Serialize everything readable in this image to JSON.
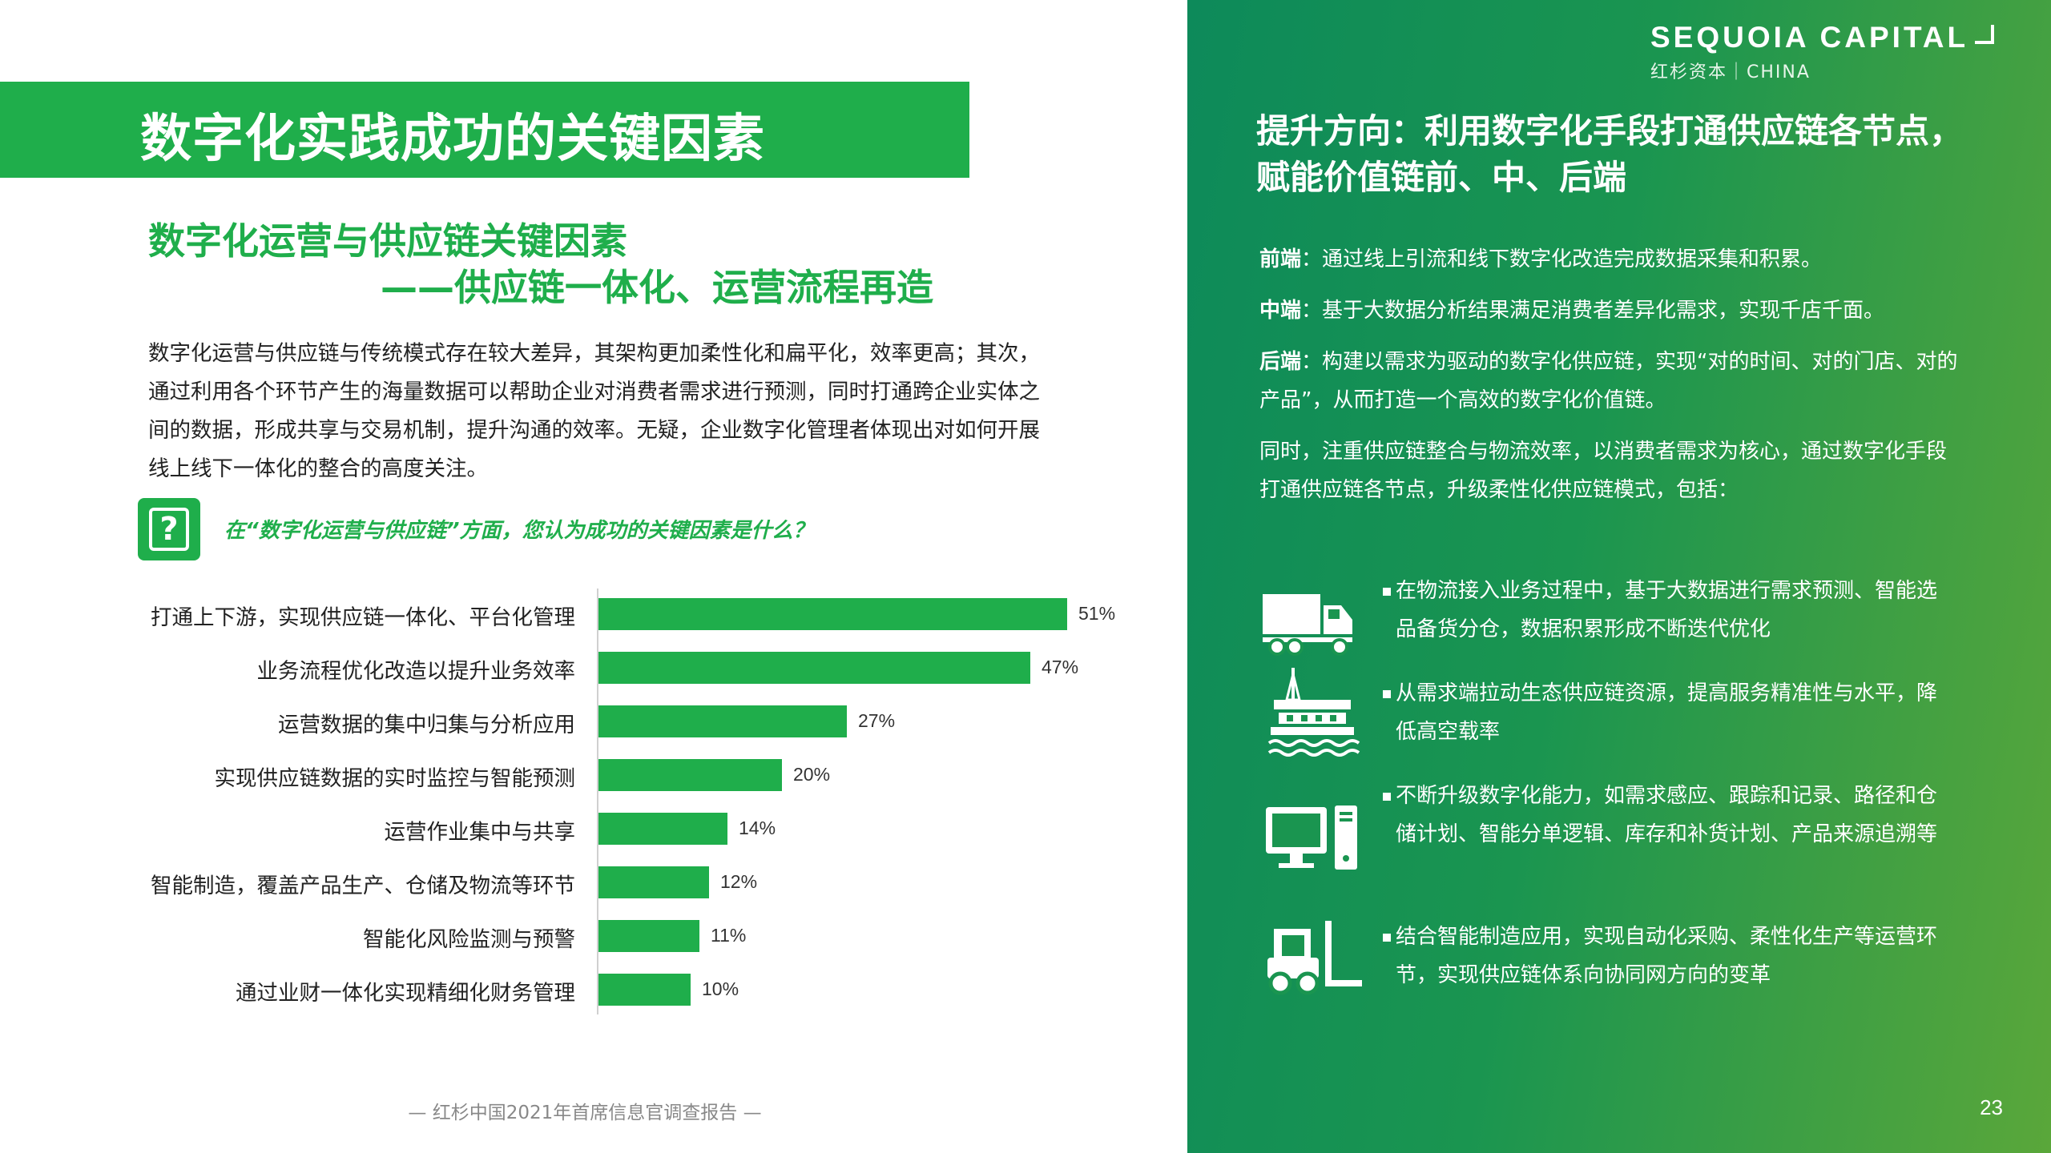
{
  "left": {
    "title": "数字化实践成功的关键因素",
    "subtitle_line1": "数字化运营与供应链关键因素",
    "subtitle_line2": "——供应链一体化、运营流程再造",
    "intro": "数字化运营与供应链与传统模式存在较大差异，其架构更加柔性化和扁平化，效率更高；其次，通过利用各个环节产生的海量数据可以帮助企业对消费者需求进行预测，同时打通跨企业实体之间的数据，形成共享与交易机制，提升沟通的效率。无疑，企业数字化管理者体现出对如何开展线上线下一体化的整合的高度关注。",
    "question_icon": "question-mark-icon",
    "question": "在“数字化运营与供应链”方面，您认为成功的关键因素是什么？"
  },
  "chart_data": {
    "type": "bar",
    "orientation": "horizontal",
    "categories": [
      "打通上下游，实现供应链一体化、平台化管理",
      "业务流程优化改造以提升业务效率",
      "运营数据的集中归集与分析应用",
      "实现供应链数据的实时监控与智能预测",
      "运营作业集中与共享",
      "智能制造，覆盖产品生产、仓储及物流等环节",
      "智能化风险监测与预警",
      "通过业财一体化实现精细化财务管理"
    ],
    "values": [
      51,
      47,
      27,
      20,
      14,
      12,
      11,
      10
    ],
    "value_labels": [
      "51%",
      "47%",
      "27%",
      "20%",
      "14%",
      "12%",
      "11%",
      "10%"
    ],
    "unit": "%",
    "xlim": [
      0,
      51
    ],
    "bar_color": "#1fae4b",
    "grid": false
  },
  "footer": "— 红杉中国2021年首席信息官调查报告 —",
  "right": {
    "logo_main": "SEQUOIA CAPITAL",
    "logo_sub": "红杉资本｜CHINA",
    "heading": "提升方向：利用数字化手段打通供应链各节点，赋能价值链前、中、后端",
    "paras": [
      {
        "label": "前端",
        "text": "：通过线上引流和线下数字化改造完成数据采集和积累。"
      },
      {
        "label": "中端",
        "text": "：基于大数据分析结果满足消费者差异化需求，实现千店千面。"
      },
      {
        "label": "后端",
        "text": "：构建以需求为驱动的数字化供应链，实现“对的时间、对的门店、对的产品”，从而打造一个高效的数字化价值链。"
      }
    ],
    "summary": "同时，注重供应链整合与物流效率，以消费者需求为核心，通过数字化手段打通供应链各节点，升级柔性化供应链模式，包括：",
    "items": [
      {
        "icon": "truck-icon",
        "text": "在物流接入业务过程中，基于大数据进行需求预测、智能选品备货分仓，数据积累形成不断迭代优化"
      },
      {
        "icon": "oil-platform-icon",
        "text": "从需求端拉动生态供应链资源，提高服务精准性与水平，降低高空载率"
      },
      {
        "icon": "computer-icon",
        "text": "不断升级数字化能力，如需求感应、跟踪和记录、路径和仓储计划、智能分单逻辑、库存和补货计划、产品来源追溯等"
      },
      {
        "icon": "forklift-icon",
        "text": "结合智能制造应用，实现自动化采购、柔性化生产等运营环节，实现供应链体系向协同网方向的变革"
      }
    ],
    "page_number": "23"
  },
  "colors": {
    "accent_green": "#1fae4b",
    "panel_start": "#0d8a5a",
    "panel_end": "#5aa73a"
  }
}
